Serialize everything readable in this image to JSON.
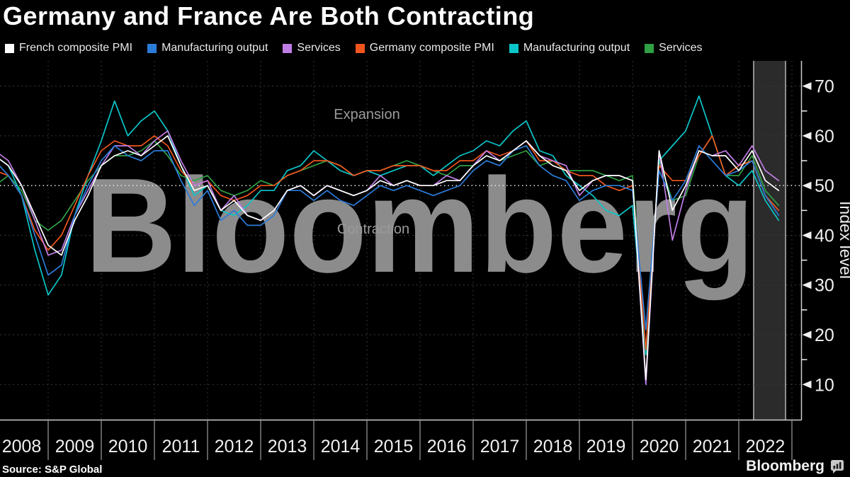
{
  "header": {
    "title": "Germany and France Are Both Contracting"
  },
  "footer": {
    "source": "Source: S&P Global",
    "brand": "Bloomberg"
  },
  "watermark": "Bloomberg",
  "annotations": {
    "above": "Expansion",
    "below": "Contraction"
  },
  "colors": {
    "background": "#000000",
    "band_fill": "#2b2b2b",
    "band_edge": "#8f8f8f",
    "grid_h": "#3a3a3a",
    "grid_v": "#333333",
    "threshold": "#e8e8e8",
    "axis": "#cfcfcf",
    "tick_text": "#f0f0f0",
    "year_separator": "#bdbdbd",
    "watermark": "#8c8c8c",
    "annotation_text": "#9a9a9a",
    "title_text": "#ffffff",
    "legend_text": "#e9e9e9"
  },
  "chart_data": {
    "type": "line",
    "title": "Germany and France Are Both Contracting",
    "xlabel": "",
    "ylabel": "Index level",
    "x_start": 2008.0,
    "x_step_years": 0.25,
    "x_tick_labels": [
      "2008",
      "2009",
      "2010",
      "2011",
      "2012",
      "2013",
      "2014",
      "2015",
      "2016",
      "2017",
      "2018",
      "2019",
      "2020",
      "2021",
      "2022"
    ],
    "y_ticks": [
      10,
      20,
      30,
      40,
      50,
      60,
      70
    ],
    "y_minor_ticks": [
      15,
      25,
      35,
      45,
      55,
      65
    ],
    "ylim": [
      3,
      75
    ],
    "xlim": [
      2008.1,
      2023.2
    ],
    "grid": "dotted",
    "legend_position": "top",
    "threshold": {
      "value": 50,
      "above_label": "Expansion",
      "below_label": "Contraction"
    },
    "highlight_band": {
      "x_from": 2022.28,
      "x_to": 2022.88
    },
    "series": [
      {
        "name": "French composite PMI",
        "group": "France",
        "color": "#ffffff",
        "values": [
          56,
          54,
          50,
          44,
          38,
          36,
          43,
          48,
          54,
          56,
          57,
          56,
          58,
          60,
          54,
          49,
          50,
          45,
          47,
          44,
          43,
          45,
          49,
          50,
          48,
          50,
          49,
          48,
          49,
          51,
          50,
          51,
          50,
          50,
          51,
          51,
          54,
          56,
          55,
          57,
          59,
          56,
          54,
          53,
          49,
          51,
          52,
          52,
          51,
          11,
          57,
          45,
          50,
          57,
          56,
          56,
          53,
          57,
          51,
          49
        ]
      },
      {
        "name": "Manufacturing output",
        "group": "France",
        "color": "#2b7cd8",
        "values": [
          55,
          52,
          48,
          40,
          32,
          34,
          44,
          50,
          55,
          58,
          56,
          55,
          57,
          57,
          51,
          46,
          49,
          43,
          45,
          42,
          42,
          44,
          49,
          49,
          47,
          49,
          47,
          46,
          48,
          50,
          49,
          50,
          49,
          48,
          49,
          50,
          53,
          55,
          54,
          57,
          58,
          54,
          52,
          51,
          47,
          49,
          50,
          50,
          49,
          21,
          53,
          47,
          51,
          58,
          55,
          52,
          53,
          55,
          48,
          44
        ]
      },
      {
        "name": "Services",
        "group": "France",
        "color": "#c07de6",
        "values": [
          57,
          55,
          50,
          43,
          36,
          37,
          44,
          49,
          54,
          58,
          58,
          56,
          59,
          61,
          55,
          50,
          51,
          45,
          48,
          44,
          43,
          45,
          49,
          50,
          48,
          50,
          49,
          48,
          49,
          52,
          50,
          51,
          50,
          50,
          52,
          51,
          54,
          57,
          55,
          57,
          59,
          56,
          55,
          54,
          48,
          51,
          52,
          52,
          51,
          10,
          57,
          39,
          49,
          57,
          56,
          57,
          54,
          58,
          53,
          51
        ]
      },
      {
        "name": "Germany composite PMI",
        "group": "Germany",
        "color": "#f0561d",
        "values": [
          53,
          52,
          48,
          41,
          37,
          40,
          46,
          52,
          57,
          59,
          58,
          58,
          60,
          58,
          53,
          50,
          51,
          48,
          47,
          48,
          50,
          50,
          52,
          53,
          55,
          55,
          54,
          52,
          53,
          53,
          54,
          54,
          54,
          53,
          53,
          55,
          55,
          57,
          56,
          57,
          59,
          55,
          55,
          53,
          52,
          52,
          50,
          49,
          50,
          17,
          54,
          51,
          51,
          56,
          60,
          52,
          54,
          55,
          48,
          45
        ]
      },
      {
        "name": "Manufacturing output",
        "group": "Germany",
        "color": "#0ac6c9",
        "values": [
          56,
          54,
          48,
          37,
          28,
          32,
          44,
          52,
          59,
          67,
          60,
          63,
          65,
          61,
          54,
          48,
          50,
          45,
          44,
          46,
          49,
          49,
          53,
          54,
          57,
          55,
          53,
          52,
          53,
          52,
          53,
          54,
          54,
          52,
          54,
          56,
          57,
          59,
          58,
          61,
          63,
          57,
          56,
          52,
          50,
          48,
          45,
          44,
          46,
          16,
          55,
          58,
          61,
          68,
          60,
          52,
          50,
          53,
          47,
          43
        ]
      },
      {
        "name": "Services",
        "group": "Germany",
        "color": "#2fa044",
        "values": [
          50,
          52,
          49,
          43,
          41,
          43,
          47,
          51,
          54,
          56,
          56,
          57,
          59,
          56,
          52,
          51,
          52,
          49,
          48,
          49,
          51,
          50,
          52,
          53,
          54,
          55,
          54,
          52,
          53,
          53,
          54,
          55,
          54,
          53,
          52,
          54,
          54,
          56,
          55,
          56,
          57,
          54,
          55,
          53,
          53,
          53,
          52,
          51,
          52,
          16,
          55,
          47,
          48,
          56,
          60,
          52,
          52,
          56,
          49,
          46
        ]
      }
    ]
  }
}
